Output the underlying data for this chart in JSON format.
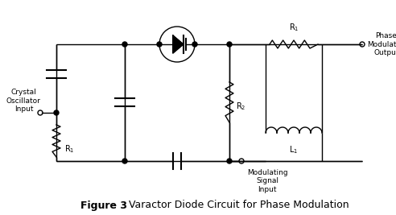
{
  "bg_color": "#ffffff",
  "line_color": "#000000",
  "fig_width": 4.92,
  "fig_height": 2.67,
  "dpi": 100,
  "title": "Figure 3",
  "title_desc": "Varactor Diode Circuit for Phase Modulation",
  "font_family": "sans-serif",
  "caption_bold": "Figure 3",
  "caption_normal": "  Varactor Diode Circuit for Phase Modulation"
}
